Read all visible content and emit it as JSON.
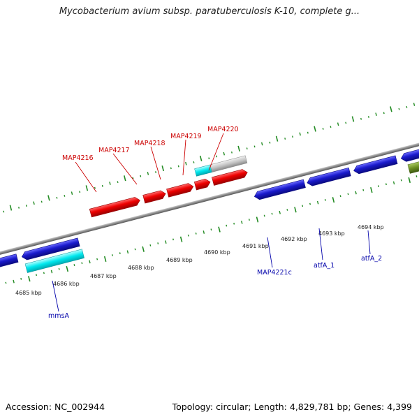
{
  "title": "Mycobacterium avium subsp. paratuberculosis K-10, complete g...",
  "footer": {
    "accession": "Accession: NC_002944",
    "topology": "Topology: circular; Length: 4,829,781 bp; Genes: 4,399"
  },
  "colors": {
    "forward_gene": "#ee0000",
    "reverse_gene": "#1a1acc",
    "cyan_feature": "#00e8ee",
    "grey_feature": "#bbbbbb",
    "olive_feature": "#6b8e23",
    "backbone": "#888888",
    "tick": "#228b22",
    "forward_label": "#cc0000",
    "reverse_label": "#0000aa"
  },
  "scale": {
    "unit": "kbp",
    "labels": [
      "4685 kbp",
      "4686 kbp",
      "4687 kbp",
      "4688 kbp",
      "4689 kbp",
      "4690 kbp",
      "4691 kbp",
      "4692 kbp",
      "4693 kbp",
      "4694 kbp"
    ]
  },
  "forward_genes": [
    "MAP4216",
    "MAP4217",
    "MAP4218",
    "MAP4219",
    "MAP4220"
  ],
  "reverse_genes": [
    "mmsA",
    "MAP4221c",
    "atfA_1",
    "atfA_2"
  ]
}
